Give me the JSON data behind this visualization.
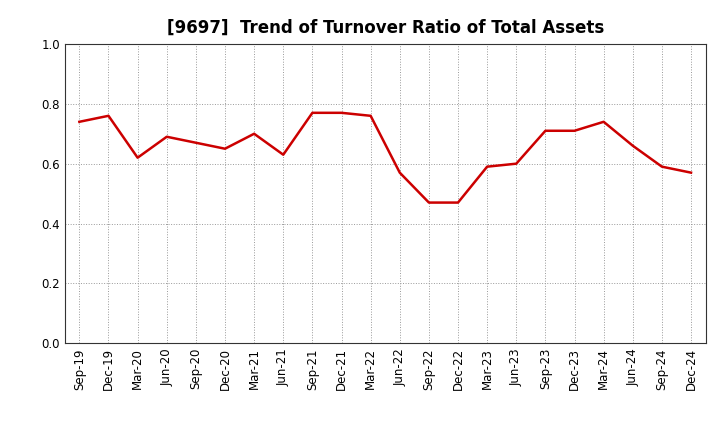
{
  "title": "[9697]  Trend of Turnover Ratio of Total Assets",
  "x_labels": [
    "Sep-19",
    "Dec-19",
    "Mar-20",
    "Jun-20",
    "Sep-20",
    "Dec-20",
    "Mar-21",
    "Jun-21",
    "Sep-21",
    "Dec-21",
    "Mar-22",
    "Jun-22",
    "Sep-22",
    "Dec-22",
    "Mar-23",
    "Jun-23",
    "Sep-23",
    "Dec-23",
    "Mar-24",
    "Jun-24",
    "Sep-24",
    "Dec-24"
  ],
  "y_values": [
    0.74,
    0.76,
    0.62,
    0.69,
    0.67,
    0.65,
    0.7,
    0.63,
    0.77,
    0.77,
    0.76,
    0.57,
    0.47,
    0.47,
    0.59,
    0.6,
    0.71,
    0.71,
    0.74,
    0.66,
    0.59,
    0.57
  ],
  "line_color": "#cc0000",
  "line_width": 1.8,
  "ylim": [
    0.0,
    1.0
  ],
  "yticks": [
    0.0,
    0.2,
    0.4,
    0.6,
    0.8,
    1.0
  ],
  "background_color": "#ffffff",
  "grid_color": "#999999",
  "title_fontsize": 12,
  "tick_fontsize": 8.5
}
